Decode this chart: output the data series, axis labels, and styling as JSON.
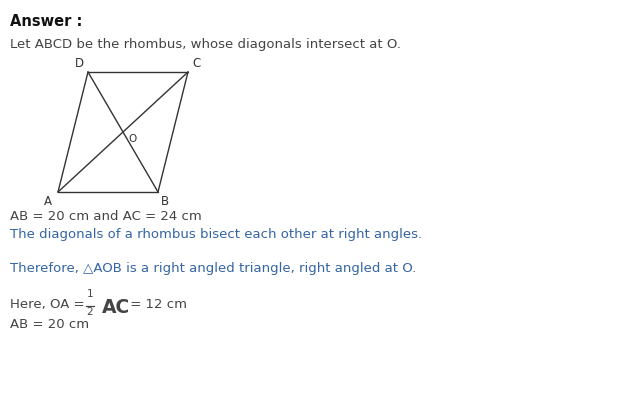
{
  "background_color": "#ffffff",
  "title_text": "Answer :",
  "line1_text": "Let ABCD be the rhombus, whose diagonals intersect at O.",
  "line1_color": "#444444",
  "line_ab": "AB = 20 cm and AC = 24 cm",
  "line_diag": "The diagonals of a rhombus bisect each other at right angles.",
  "line_diag_color": "#3465a4",
  "line_therefore": "Therefore, △AOB is a right angled triangle, right angled at O.",
  "line_therefore_color": "#3465a4",
  "line_here2": "AB = 20 cm",
  "text_color_black": "#444444",
  "diagram_line_color": "#333333",
  "body_fontsize": 9.5,
  "label_fontsize": 8.5,
  "title_fontsize": 10.5
}
